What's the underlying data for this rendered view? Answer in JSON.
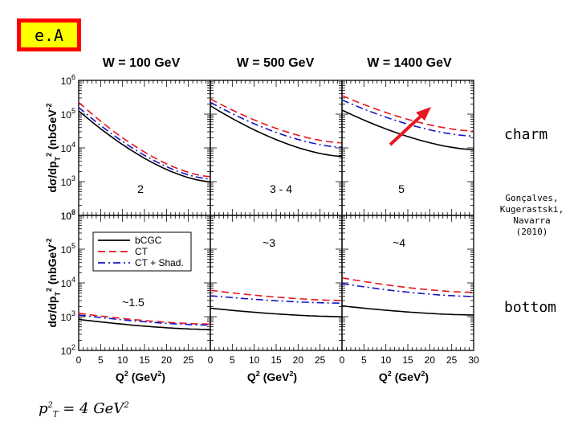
{
  "ea_label": "e.A",
  "charm_label": "charm",
  "bottom_label": "bottom",
  "citation": [
    "Gonçalves,",
    "Kugerastski,",
    "Navarra",
    "(2010)"
  ],
  "pt_formula": {
    "p": "p",
    "sup": "2",
    "sub": "T",
    "eq": " = 4  GeV",
    "unit_sup": "2"
  },
  "colors": {
    "series": [
      "#000000",
      "#e8171e",
      "#1515c8"
    ],
    "arrow": "#e8171e"
  },
  "chart_data": {
    "type": "line",
    "titles": [
      "W = 100 GeV",
      "W = 500 GeV",
      "W = 1400 GeV"
    ],
    "xlabel_parts": [
      "Q",
      "2",
      " (GeV",
      "2",
      ")"
    ],
    "ylabel_parts": [
      "dσ/dp",
      "T",
      "2",
      " (nbGeV",
      "-2",
      ")"
    ],
    "xlim": [
      0,
      30
    ],
    "x_ticks": [
      "0",
      "5",
      "10",
      "15",
      "20",
      "25",
      "30"
    ],
    "ylim_log": [
      2,
      6
    ],
    "y_ticks": [
      {
        "base": "10",
        "exp": "6"
      },
      {
        "base": "10",
        "exp": "5"
      },
      {
        "base": "10",
        "exp": "4"
      },
      {
        "base": "10",
        "exp": "3"
      },
      {
        "base": "10",
        "exp": "2"
      }
    ],
    "legend": [
      "bCGC",
      "CT",
      "CT + Shad."
    ],
    "series_styles": [
      "solid",
      "dashed",
      "dashdot"
    ],
    "rows": [
      {
        "name": "charm",
        "panels": [
          {
            "annotation": "2",
            "series": [
              {
                "name": "bCGC",
                "start": 5.1,
                "end": 3.0
              },
              {
                "name": "CT",
                "start": 5.35,
                "end": 3.15
              },
              {
                "name": "CT + Shad.",
                "start": 5.2,
                "end": 3.08
              }
            ]
          },
          {
            "annotation": "3 - 4",
            "series": [
              {
                "name": "bCGC",
                "start": 5.25,
                "end": 3.75
              },
              {
                "name": "CT",
                "start": 5.45,
                "end": 4.15
              },
              {
                "name": "CT + Shad.",
                "start": 5.35,
                "end": 4.02
              }
            ]
          },
          {
            "annotation": "5",
            "series": [
              {
                "name": "bCGC",
                "start": 5.12,
                "end": 3.95
              },
              {
                "name": "CT",
                "start": 5.55,
                "end": 4.5
              },
              {
                "name": "CT + Shad.",
                "start": 5.42,
                "end": 4.35
              }
            ]
          }
        ]
      },
      {
        "name": "bottom",
        "panels": [
          {
            "annotation": "~1.5",
            "series": [
              {
                "name": "bCGC",
                "start": 2.92,
                "end": 2.62
              },
              {
                "name": "CT",
                "start": 3.1,
                "end": 2.78
              },
              {
                "name": "CT + Shad.",
                "start": 3.05,
                "end": 2.75
              }
            ]
          },
          {
            "annotation": "~3",
            "series": [
              {
                "name": "bCGC",
                "start": 3.25,
                "end": 3.0
              },
              {
                "name": "CT",
                "start": 3.78,
                "end": 3.48
              },
              {
                "name": "CT + Shad.",
                "start": 3.62,
                "end": 3.4
              }
            ]
          },
          {
            "annotation": "~4",
            "series": [
              {
                "name": "bCGC",
                "start": 3.32,
                "end": 3.05
              },
              {
                "name": "CT",
                "start": 4.15,
                "end": 3.72
              },
              {
                "name": "CT + Shad.",
                "start": 3.98,
                "end": 3.6
              }
            ]
          }
        ]
      }
    ]
  }
}
